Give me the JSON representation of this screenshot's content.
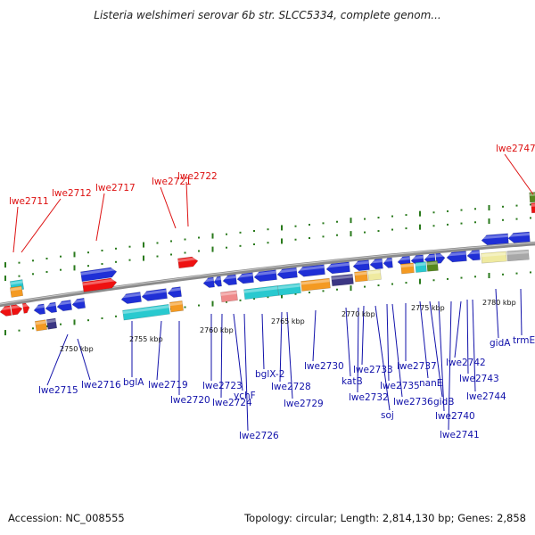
{
  "title": "Listeria welshimeri serovar 6b str. SLCC5334, complete genom...",
  "footer": {
    "accession": "Accession: NC_008555",
    "stats": "Topology: circular; Length: 2,814,130 bp; Genes: 2,858"
  },
  "colors": {
    "backbone": "#8a8a8a",
    "gene_blue": "#1f2fd6",
    "gene_red": "#ee1111",
    "gene_cyan": "#29c9cf",
    "gene_orange": "#f49a22",
    "gene_navy": "#3b3683",
    "gene_green": "#56881e",
    "gene_pink": "#ef8a8a",
    "gene_yellow": "#efeaa0",
    "gene_gray": "#a8a8a8",
    "tick_green": "#2a7a1c",
    "label_red": "#dd1111",
    "label_blue": "#1111aa"
  },
  "scale_labels": [
    {
      "text": "2750 kbp"
    },
    {
      "text": "2755 kbp"
    },
    {
      "text": "2760 kbp"
    },
    {
      "text": "2765 kbp"
    },
    {
      "text": "2770 kbp"
    },
    {
      "text": "2775 kbp"
    },
    {
      "text": "2780 kbp"
    }
  ],
  "labels_top": [
    {
      "text": "lwe2711"
    },
    {
      "text": "lwe2712"
    },
    {
      "text": "lwe2717"
    },
    {
      "text": "lwe2721"
    },
    {
      "text": "lwe2722"
    },
    {
      "text": "lwe2747"
    }
  ],
  "labels_bottom": [
    {
      "text": "lwe2715"
    },
    {
      "text": "lwe2716"
    },
    {
      "text": "bglA"
    },
    {
      "text": "lwe2719"
    },
    {
      "text": "lwe2720"
    },
    {
      "text": "lwe2723"
    },
    {
      "text": "lwe2724"
    },
    {
      "text": "ychF"
    },
    {
      "text": "lwe2726"
    },
    {
      "text": "bglX-2"
    },
    {
      "text": "lwe2728"
    },
    {
      "text": "lwe2729"
    },
    {
      "text": "lwe2730"
    },
    {
      "text": "katB"
    },
    {
      "text": "lwe2732"
    },
    {
      "text": "lwe2733"
    },
    {
      "text": "soj"
    },
    {
      "text": "lwe2735"
    },
    {
      "text": "lwe2736"
    },
    {
      "text": "lwe2737"
    },
    {
      "text": "nanE"
    },
    {
      "text": "gidB"
    },
    {
      "text": "lwe2740"
    },
    {
      "text": "lwe2741"
    },
    {
      "text": "lwe2742"
    },
    {
      "text": "lwe2743"
    },
    {
      "text": "lwe2744"
    },
    {
      "text": "gidA"
    },
    {
      "text": "trmE"
    }
  ]
}
